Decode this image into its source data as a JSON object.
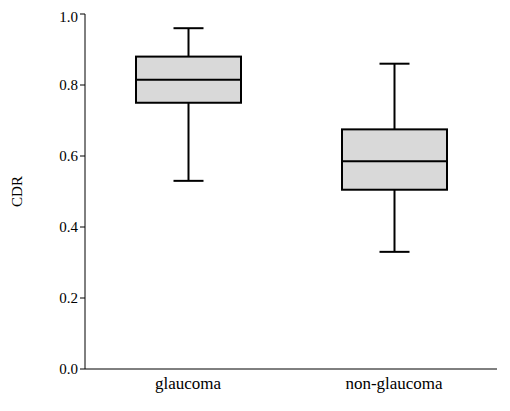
{
  "chart_data": {
    "type": "box",
    "ylabel": "CDR",
    "categories": [
      "glaucoma",
      "non-glaucoma"
    ],
    "values": [
      {
        "min": 0.53,
        "q1": 0.75,
        "median": 0.815,
        "q3": 0.88,
        "max": 0.96
      },
      {
        "min": 0.33,
        "q1": 0.505,
        "median": 0.585,
        "q3": 0.675,
        "max": 0.86
      }
    ],
    "color": "#d9d9d9",
    "ylim": [
      0,
      1
    ],
    "yticks": [
      {
        "value": 0,
        "label": "0.0"
      },
      0.2,
      0.4,
      0.6,
      0.8,
      {
        "value": 1,
        "label": "1.0"
      }
    ],
    "grid": false
  }
}
